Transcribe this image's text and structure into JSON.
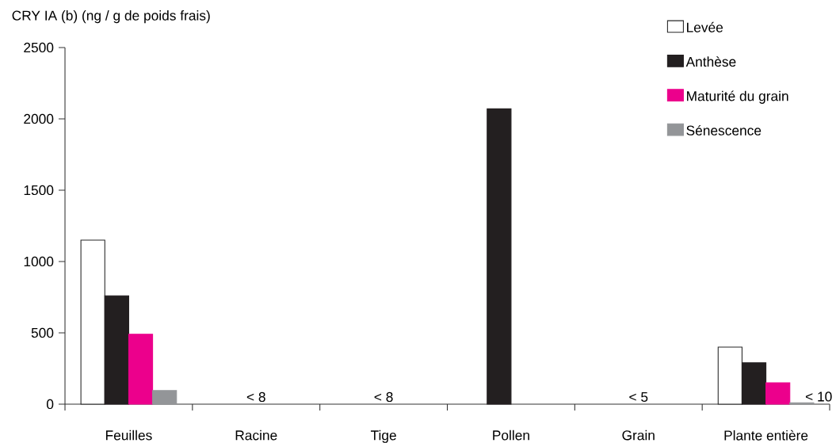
{
  "chart_data": {
    "type": "bar",
    "ylabel": "CRY IA (b)  (ng / g de poids frais)",
    "categories": [
      "Feuilles",
      "Racine",
      "Tige",
      "Pollen",
      "Grain",
      "Plante entière"
    ],
    "series": [
      {
        "name": "Levée",
        "color": "#ffffff",
        "values": [
          1150,
          null,
          null,
          null,
          null,
          400
        ]
      },
      {
        "name": "Anthèse",
        "color": "#231f20",
        "values": [
          760,
          null,
          null,
          2070,
          null,
          290
        ]
      },
      {
        "name": "Maturité du grain",
        "color": "#ec008c",
        "values": [
          490,
          null,
          null,
          null,
          null,
          150
        ]
      },
      {
        "name": "Sénescence",
        "color": "#939598",
        "values": [
          95,
          null,
          null,
          null,
          null,
          10
        ],
        "value_labels": [
          null,
          null,
          null,
          null,
          null,
          "< 10"
        ]
      }
    ],
    "ylim": [
      0,
      2500
    ],
    "yticks": [
      0,
      500,
      1000,
      1500,
      2000,
      2500
    ],
    "legend": "top right",
    "grid": false,
    "annotations": [
      "< 8",
      "< 8",
      "< 5"
    ]
  }
}
